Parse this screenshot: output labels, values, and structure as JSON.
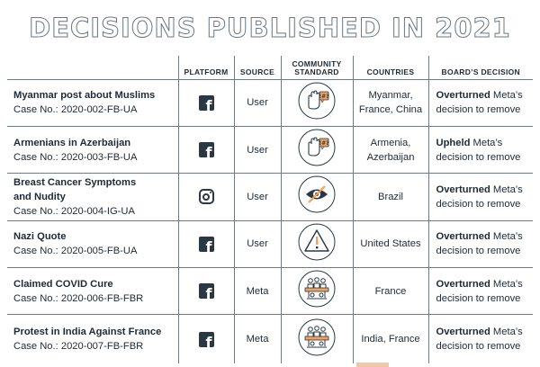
{
  "title": "DECISIONS PUBLISHED IN 2021",
  "columns": {
    "case": "",
    "platform": "PLATFORM",
    "source": "SOURCE",
    "standard_line1": "COMMUNITY",
    "standard_line2": "STANDARD",
    "countries": "COUNTRIES",
    "decision": "BOARD’S DECISION"
  },
  "rows": [
    {
      "title": "Myanmar post about Muslims",
      "title2": "",
      "case_no": "Case No.: 2020-002-FB-UA",
      "platform_icon": "facebook-icon",
      "source": "User",
      "standard_icon": "hate-speech-icon",
      "countries_line1": "Myanmar,",
      "countries_line2": "France, China",
      "decision_word": "Overturned",
      "decision_rest": " Meta’s",
      "decision_line2": "decision to remove"
    },
    {
      "title": "Armenians in Azerbaijan",
      "title2": "",
      "case_no": "Case No.: 2020-003-FB-UA",
      "platform_icon": "facebook-icon",
      "source": "User",
      "standard_icon": "hate-speech-icon",
      "countries_line1": "Armenia,",
      "countries_line2": "Azerbaijan",
      "decision_word": "Upheld",
      "decision_rest": " Meta’s",
      "decision_line2": "decision to remove"
    },
    {
      "title": "Breast Cancer Symptoms",
      "title2": "and Nudity",
      "case_no": "Case No.: 2020-004-IG-UA",
      "platform_icon": "instagram-icon",
      "source": "User",
      "standard_icon": "nudity-icon",
      "countries_line1": "Brazil",
      "countries_line2": "",
      "decision_word": "Overturned",
      "decision_rest": " Meta’s",
      "decision_line2": "decision to remove"
    },
    {
      "title": "Nazi Quote",
      "title2": "",
      "case_no": "Case No.: 2020-005-FB-UA",
      "platform_icon": "facebook-icon",
      "source": "User",
      "standard_icon": "dangerous-organizations-icon",
      "countries_line1": "United States",
      "countries_line2": "",
      "decision_word": "Overturned",
      "decision_rest": " Meta’s",
      "decision_line2": "decision to remove"
    },
    {
      "title": "Claimed COVID Cure",
      "title2": "",
      "case_no": "Case No.: 2020-006-FB-FBR",
      "platform_icon": "facebook-icon",
      "source": "Meta",
      "standard_icon": "violence-incitement-icon",
      "countries_line1": "France",
      "countries_line2": "",
      "decision_word": "Overturned",
      "decision_rest": " Meta’s",
      "decision_line2": "decision to remove"
    },
    {
      "title": "Protest in India Against France",
      "title2": "",
      "case_no": "Case No.: 2020-007-FB-FBR",
      "platform_icon": "facebook-icon",
      "source": "Meta",
      "standard_icon": "violence-incitement-icon",
      "countries_line1": "India, France",
      "countries_line2": "",
      "decision_word": "Overturned",
      "decision_rest": " Meta’s",
      "decision_line2": "decision to remove"
    }
  ],
  "colors": {
    "text": "#1e2a36",
    "border": "#6f7b87",
    "title_outline": "#6a7682",
    "icon_accent": "#f0a25e"
  }
}
